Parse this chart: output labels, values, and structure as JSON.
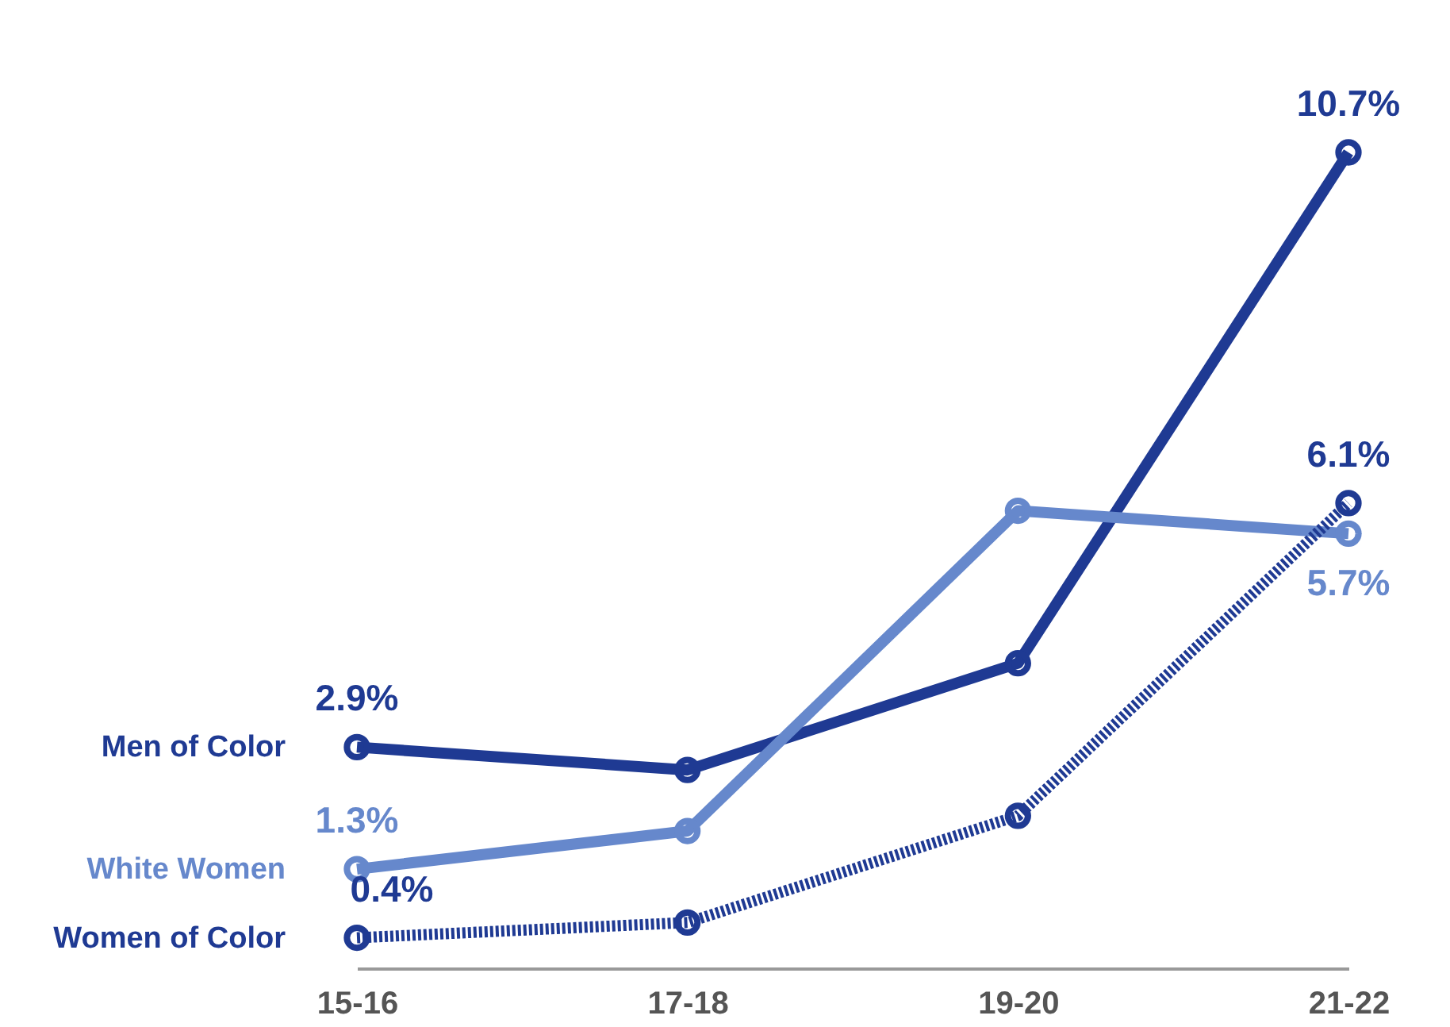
{
  "chart_data": {
    "type": "line",
    "categories": [
      "15-16",
      "17-18",
      "19-20",
      "21-22"
    ],
    "series": [
      {
        "name": "Men of Color",
        "color": "#1f3a93",
        "values": [
          2.9,
          2.6,
          4.0,
          10.7
        ],
        "value_labels": [
          "2.9%",
          null,
          null,
          "10.7%"
        ],
        "line_style": "solid"
      },
      {
        "name": "White Women",
        "color": "#6688cc",
        "values": [
          1.3,
          1.8,
          6.0,
          5.7
        ],
        "value_labels": [
          "1.3%",
          null,
          null,
          "5.7%"
        ],
        "line_style": "solid"
      },
      {
        "name": "Women of Color",
        "color": "#1f3a93",
        "values": [
          0.4,
          0.6,
          2.0,
          6.1
        ],
        "value_labels": [
          "0.4%",
          null,
          null,
          "6.1%"
        ],
        "line_style": "dotted"
      }
    ],
    "legend": "left",
    "marker": "circle",
    "tick_labels": "x"
  }
}
